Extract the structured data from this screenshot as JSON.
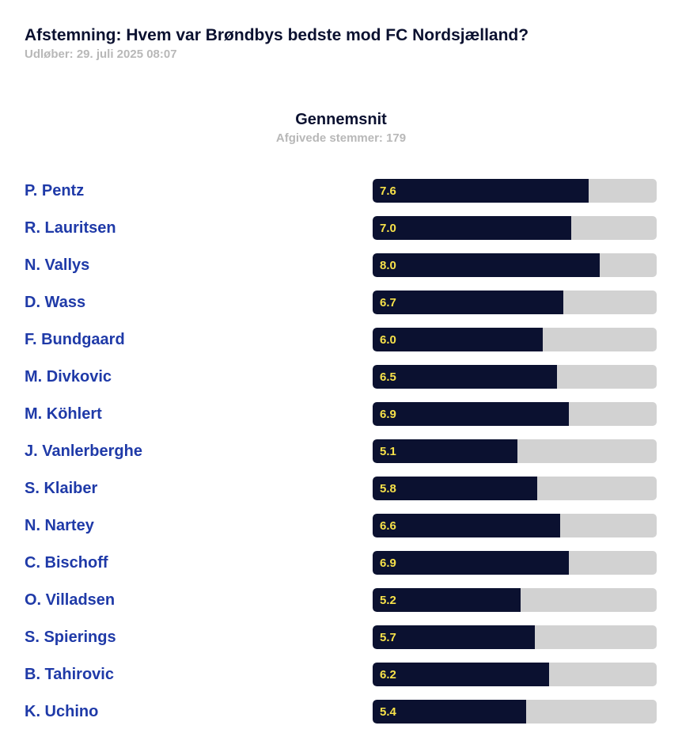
{
  "poll": {
    "title": "Afstemning: Hvem var Brøndbys bedste mod FC Nordsjælland?",
    "expires": "Udløber: 29. juli 2025 08:07"
  },
  "summary": {
    "title": "Gennemsnit",
    "votes": "Afgivede stemmer: 179"
  },
  "colors": {
    "bar": "#0b1130",
    "track": "#d2d2d2",
    "value_text": "#f6e14a",
    "player_name": "#1f3aa8"
  },
  "chart_data": {
    "type": "bar",
    "orientation": "horizontal",
    "xlim": [
      0,
      10
    ],
    "categories": [
      "P. Pentz",
      "R. Lauritsen",
      "N. Vallys",
      "D. Wass",
      "F. Bundgaard",
      "M. Divkovic",
      "M. Köhlert",
      "J. Vanlerberghe",
      "S. Klaiber",
      "N. Nartey",
      "C. Bischoff",
      "O. Villadsen",
      "S. Spierings",
      "B. Tahirovic",
      "K. Uchino"
    ],
    "values": [
      7.6,
      7.0,
      8.0,
      6.7,
      6.0,
      6.5,
      6.9,
      5.1,
      5.8,
      6.6,
      6.9,
      5.2,
      5.7,
      6.2,
      5.4
    ],
    "value_labels": [
      "7.6",
      "7.0",
      "8.0",
      "6.7",
      "6.0",
      "6.5",
      "6.9",
      "5.1",
      "5.8",
      "6.6",
      "6.9",
      "5.2",
      "5.7",
      "6.2",
      "5.4"
    ]
  }
}
